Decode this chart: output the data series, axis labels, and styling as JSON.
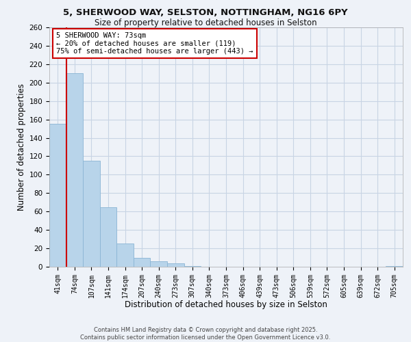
{
  "title_line1": "5, SHERWOOD WAY, SELSTON, NOTTINGHAM, NG16 6PY",
  "title_line2": "Size of property relative to detached houses in Selston",
  "xlabel": "Distribution of detached houses by size in Selston",
  "ylabel": "Number of detached properties",
  "bar_labels": [
    "41sqm",
    "74sqm",
    "107sqm",
    "141sqm",
    "174sqm",
    "207sqm",
    "240sqm",
    "273sqm",
    "307sqm",
    "340sqm",
    "373sqm",
    "406sqm",
    "439sqm",
    "473sqm",
    "506sqm",
    "539sqm",
    "572sqm",
    "605sqm",
    "639sqm",
    "672sqm",
    "705sqm"
  ],
  "bar_values": [
    155,
    210,
    115,
    65,
    25,
    10,
    6,
    4,
    1,
    0,
    0,
    0,
    0,
    0,
    0,
    0,
    0,
    0,
    0,
    0,
    1
  ],
  "bar_color": "#b8d4ea",
  "bar_edge_color": "#8ab4d4",
  "grid_color": "#c8d4e4",
  "background_color": "#eef2f8",
  "vline_color": "#cc0000",
  "ylim": [
    0,
    260
  ],
  "yticks": [
    0,
    20,
    40,
    60,
    80,
    100,
    120,
    140,
    160,
    180,
    200,
    220,
    240,
    260
  ],
  "annotation_text": "5 SHERWOOD WAY: 73sqm\n← 20% of detached houses are smaller (119)\n75% of semi-detached houses are larger (443) →",
  "annotation_box_color": "#ffffff",
  "annotation_box_edge": "#cc0000",
  "footer_line1": "Contains HM Land Registry data © Crown copyright and database right 2025.",
  "footer_line2": "Contains public sector information licensed under the Open Government Licence v3.0."
}
